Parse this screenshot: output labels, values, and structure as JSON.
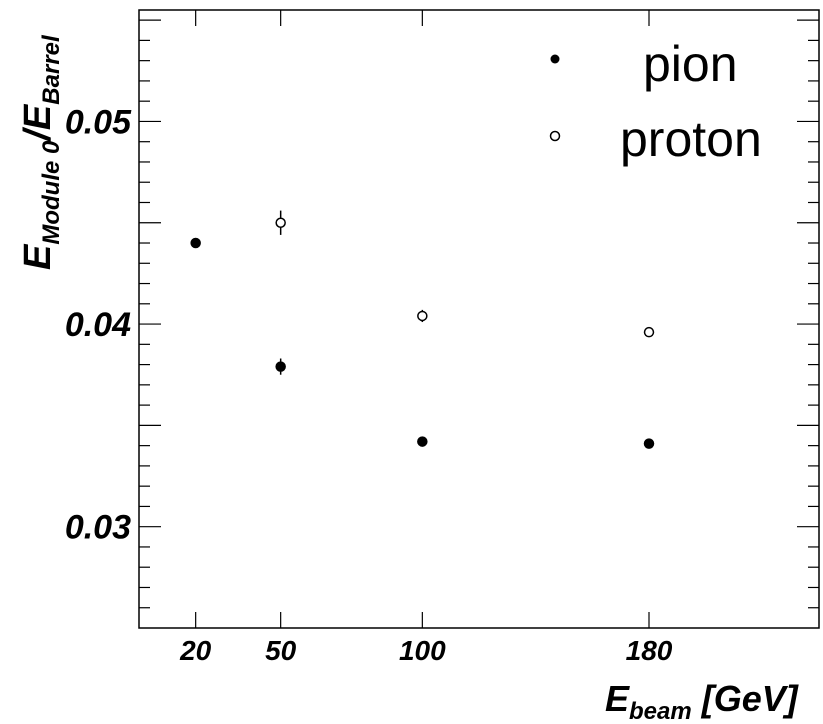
{
  "chart_data": {
    "type": "scatter",
    "xlabel": {
      "main": "E",
      "sub": "beam",
      "unit": " [GeV]"
    },
    "ylabel": {
      "main1": "E",
      "sub1": "Module 0",
      "slash": "/",
      "main2": "E",
      "sub2": "Barrel"
    },
    "xlim": [
      0,
      240
    ],
    "ylim": [
      0.025,
      0.0555
    ],
    "x_ticks": [
      20,
      50,
      100,
      180
    ],
    "y_ticks_labeled": [
      0.03,
      0.04,
      0.05
    ],
    "y_tick_labels": [
      "0.03",
      "0.04",
      "0.05"
    ],
    "x_tick_labels": [
      "20",
      "50",
      "100",
      "180"
    ],
    "legend_position": "top-right",
    "grid": false,
    "series": [
      {
        "name": "pion",
        "marker": "filled-circle",
        "color": "#000000",
        "x": [
          20,
          50,
          100,
          180
        ],
        "y": [
          0.044,
          0.0379,
          0.0342,
          0.0341
        ],
        "err": [
          0.0002,
          0.0004,
          0.0002,
          0.0001
        ]
      },
      {
        "name": "proton",
        "marker": "open-circle",
        "color": "#000000",
        "x": [
          50,
          100,
          180
        ],
        "y": [
          0.045,
          0.0404,
          0.0396
        ],
        "err": [
          0.0006,
          0.0003,
          0.0002
        ]
      }
    ]
  }
}
